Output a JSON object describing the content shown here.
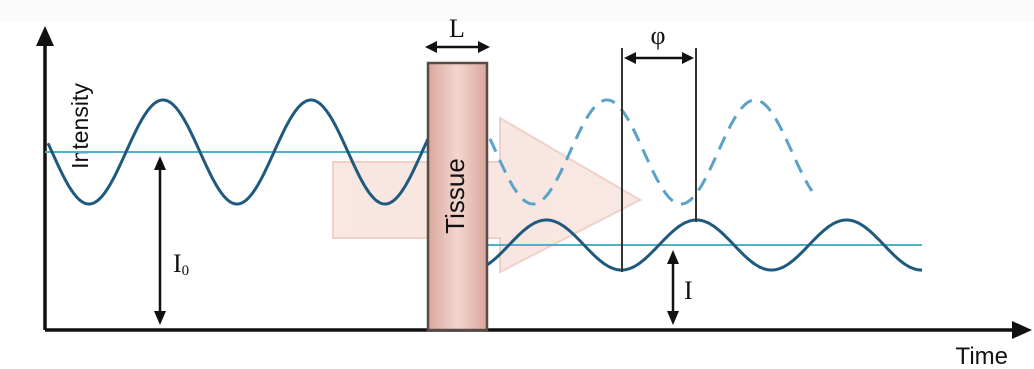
{
  "labels": {
    "y_axis": "Intensity",
    "x_axis": "Time",
    "tissue": "Tissue",
    "thickness": "L",
    "phase_shift": "φ",
    "incident_intensity": "I",
    "incident_intensity_subscript": "0",
    "transmitted_intensity": "I"
  },
  "colors": {
    "wave": "#1f5a7e",
    "baseline": "#4fb0c6",
    "dashed_wave": "#5aa2c8",
    "axis": "#111111",
    "tissue_fill": "#e8c3b9",
    "tissue_stroke": "#5a4a45",
    "arrow_fill": "#f7e2dc"
  }
}
